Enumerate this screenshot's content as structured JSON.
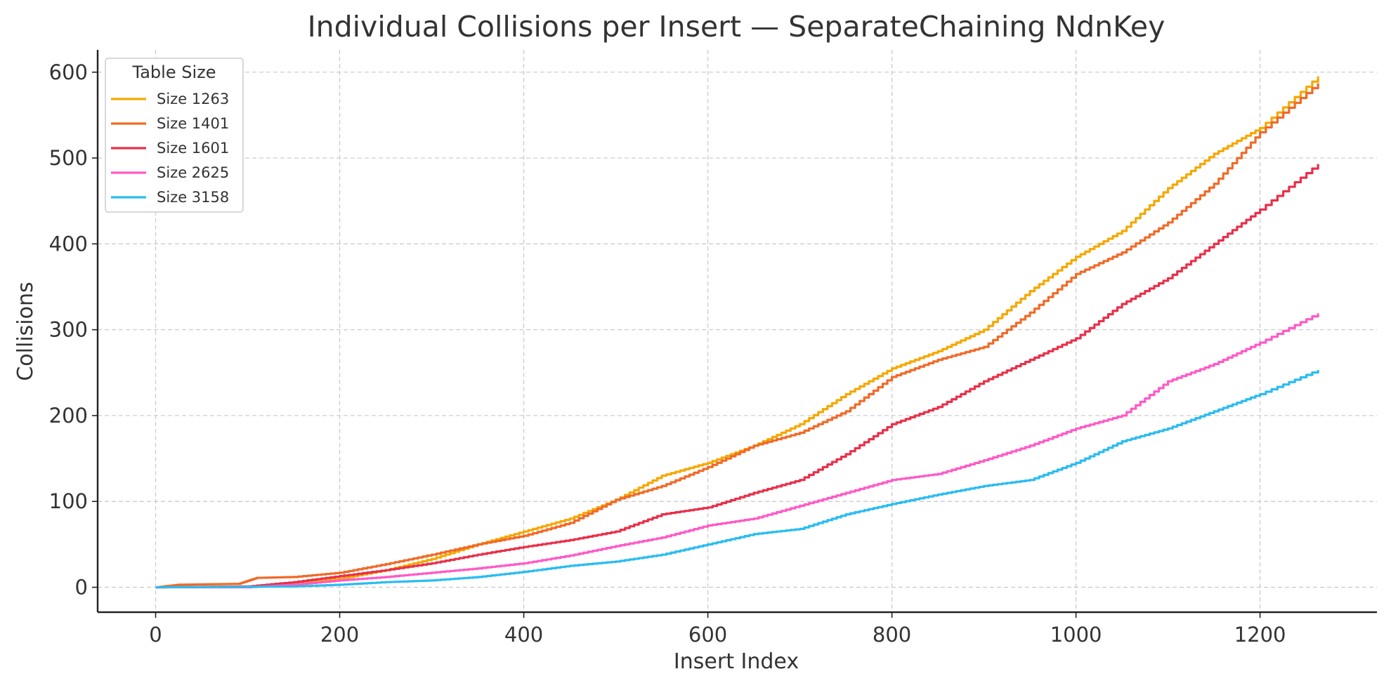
{
  "chart_data": {
    "type": "line",
    "title": "Individual Collisions per Insert — SeparateChaining NdnKey",
    "xlabel": "Insert Index",
    "ylabel": "Collisions",
    "xlim": [
      -63,
      1327
    ],
    "ylim": [
      -29,
      626
    ],
    "xticks": [
      0,
      200,
      400,
      600,
      800,
      1000,
      1200
    ],
    "yticks": [
      0,
      100,
      200,
      300,
      400,
      500,
      600
    ],
    "grid": true,
    "legend": {
      "title": "Table Size",
      "position": "top-left"
    },
    "series": [
      {
        "name": "Size 1263",
        "color": "#f5a800",
        "x": [
          0,
          100,
          150,
          200,
          250,
          300,
          350,
          400,
          450,
          500,
          550,
          600,
          650,
          700,
          750,
          800,
          850,
          900,
          950,
          1000,
          1050,
          1100,
          1150,
          1200,
          1263
        ],
        "y": [
          0,
          1,
          4,
          10,
          20,
          33,
          50,
          65,
          80,
          102,
          130,
          145,
          165,
          190,
          225,
          255,
          275,
          300,
          345,
          385,
          415,
          465,
          505,
          535,
          595
        ]
      },
      {
        "name": "Size 1401",
        "color": "#f06a28",
        "x": [
          0,
          25,
          90,
          110,
          150,
          200,
          250,
          300,
          350,
          400,
          450,
          500,
          550,
          600,
          650,
          700,
          750,
          800,
          850,
          900,
          950,
          1000,
          1050,
          1100,
          1150,
          1200,
          1263
        ],
        "y": [
          0,
          3,
          4,
          11,
          12,
          17,
          27,
          38,
          50,
          60,
          75,
          102,
          118,
          140,
          165,
          180,
          205,
          245,
          265,
          280,
          320,
          365,
          390,
          425,
          470,
          530,
          587
        ]
      },
      {
        "name": "Size 1601",
        "color": "#e8304a",
        "x": [
          0,
          100,
          150,
          200,
          250,
          300,
          350,
          400,
          450,
          500,
          550,
          600,
          650,
          700,
          750,
          800,
          850,
          900,
          950,
          1000,
          1050,
          1100,
          1150,
          1200,
          1263
        ],
        "y": [
          0,
          1,
          6,
          13,
          20,
          28,
          38,
          47,
          55,
          65,
          85,
          93,
          110,
          125,
          155,
          190,
          210,
          240,
          265,
          290,
          330,
          360,
          400,
          440,
          493
        ]
      },
      {
        "name": "Size 2625",
        "color": "#ff5ac6",
        "x": [
          0,
          100,
          150,
          200,
          250,
          300,
          350,
          400,
          450,
          500,
          550,
          600,
          650,
          700,
          750,
          800,
          850,
          900,
          950,
          1000,
          1050,
          1100,
          1150,
          1200,
          1263
        ],
        "y": [
          0,
          0,
          3,
          8,
          12,
          17,
          22,
          28,
          37,
          48,
          58,
          72,
          80,
          95,
          110,
          125,
          132,
          148,
          165,
          185,
          200,
          240,
          260,
          285,
          319
        ]
      },
      {
        "name": "Size 3158",
        "color": "#2bbcf0",
        "x": [
          0,
          150,
          200,
          250,
          300,
          350,
          400,
          450,
          500,
          550,
          600,
          650,
          700,
          750,
          800,
          850,
          900,
          950,
          1000,
          1050,
          1100,
          1150,
          1200,
          1263
        ],
        "y": [
          0,
          1,
          3,
          6,
          8,
          12,
          18,
          25,
          30,
          38,
          50,
          62,
          68,
          85,
          97,
          108,
          118,
          125,
          145,
          170,
          185,
          205,
          225,
          253
        ]
      }
    ]
  }
}
